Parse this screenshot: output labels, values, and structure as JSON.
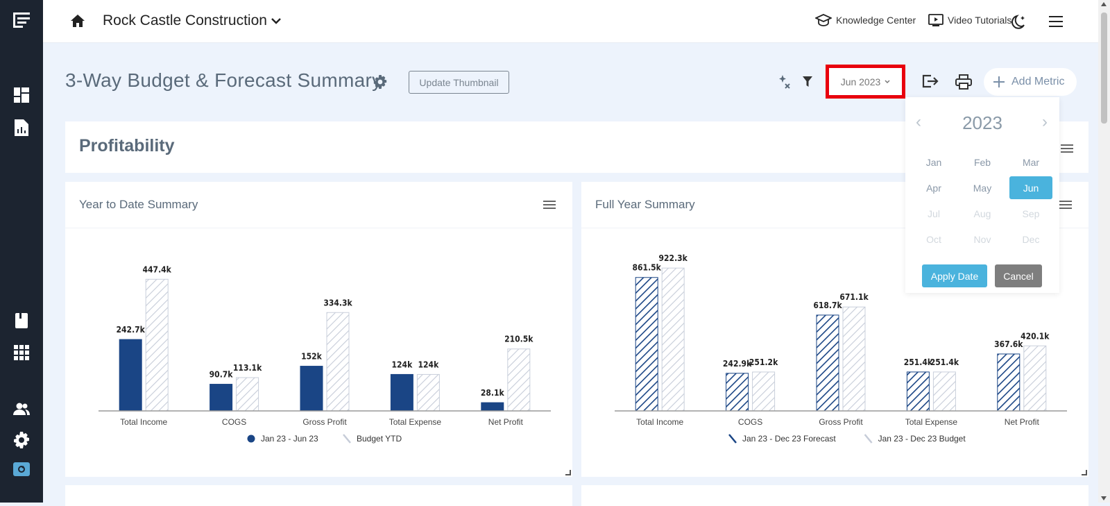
{
  "header": {
    "company": "Rock Castle Construction",
    "knowledge_center": "Knowledge Center",
    "video_tutorials": "Video Tutorials"
  },
  "toolbar": {
    "page_title": "3-Way Budget & Forecast Summary",
    "update_thumbnail": "Update Thumbnail",
    "date_value": "Jun 2023",
    "add_metric": "Add Metric"
  },
  "section": {
    "title": "Profitability"
  },
  "date_picker": {
    "year": "2023",
    "months": [
      "Jan",
      "Feb",
      "Mar",
      "Apr",
      "May",
      "Jun",
      "Jul",
      "Aug",
      "Sep",
      "Oct",
      "Nov",
      "Dec"
    ],
    "selected": "Jun",
    "enabled_count": 6,
    "apply": "Apply Date",
    "cancel": "Cancel"
  },
  "colors": {
    "accent": "#4ab3dd",
    "bar_solid": "#1a4585",
    "highlight": "#e8000d"
  },
  "chart_data": [
    {
      "type": "bar",
      "title": "Year to Date Summary",
      "categories": [
        "Total Income",
        "COGS",
        "Gross Profit",
        "Total Expense",
        "Net Profit"
      ],
      "series": [
        {
          "name": "Jan 23 - Jun 23",
          "style": "solid",
          "values": [
            242.7,
            90.7,
            152,
            124,
            28.1
          ],
          "labels": [
            "242.7k",
            "90.7k",
            "152k",
            "124k",
            "28.1k"
          ]
        },
        {
          "name": "Budget YTD",
          "style": "light-hatch",
          "values": [
            447.4,
            113.1,
            334.3,
            124,
            210.5
          ],
          "labels": [
            "447.4k",
            "113.1k",
            "334.3k",
            "124k",
            "210.5k"
          ]
        }
      ],
      "ylim": [
        0,
        500
      ],
      "legend": "bottom",
      "grid": false
    },
    {
      "type": "bar",
      "title": "Full Year Summary",
      "categories": [
        "Total Income",
        "COGS",
        "Gross Profit",
        "Total Expense",
        "Net Profit"
      ],
      "series": [
        {
          "name": "Jan 23 - Dec 23 Forecast",
          "style": "dark-hatch",
          "values": [
            861.5,
            242.9,
            618.7,
            251.4,
            367.6
          ],
          "labels": [
            "861.5k",
            "242.9k",
            "618.7k",
            "251.4k",
            "367.6k"
          ]
        },
        {
          "name": "Jan 23 - Dec 23 Budget",
          "style": "light-hatch",
          "values": [
            922.3,
            251.2,
            671.1,
            251.4,
            420.1
          ],
          "labels": [
            "922.3k",
            "251.2k",
            "671.1k",
            "251.4k",
            "420.1k"
          ]
        }
      ],
      "ylim": [
        0,
        950
      ],
      "legend": "bottom",
      "grid": false
    }
  ]
}
